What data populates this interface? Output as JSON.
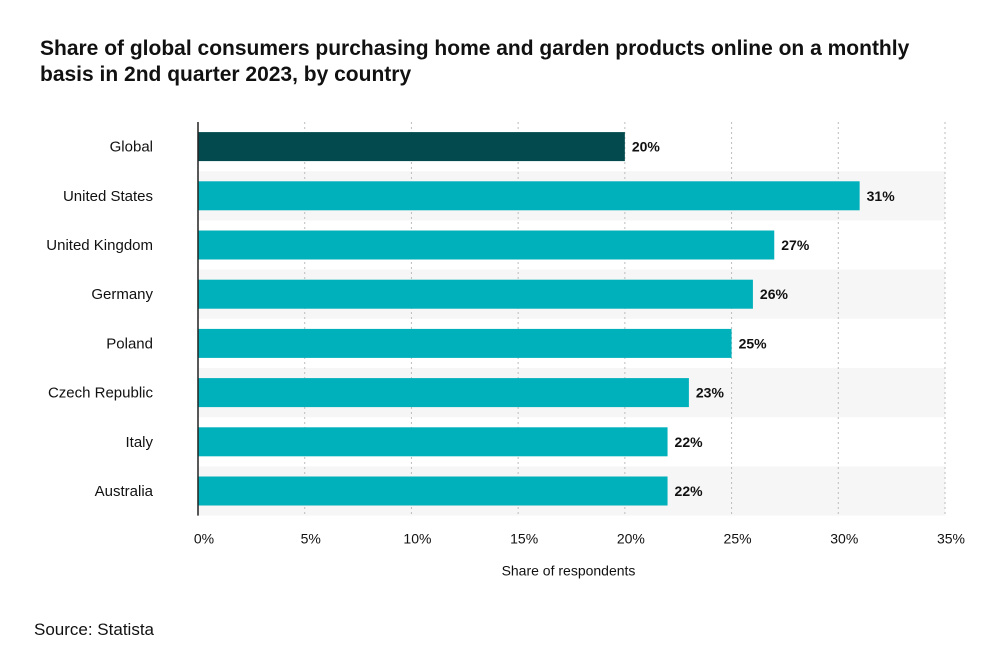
{
  "chart_data": {
    "type": "bar",
    "orientation": "horizontal",
    "title": "Share of global consumers purchasing home and garden products online on a monthly basis in 2nd quarter 2023, by country",
    "categories": [
      "Global",
      "United States",
      "United Kingdom",
      "Germany",
      "Poland",
      "Czech Republic",
      "Italy",
      "Australia"
    ],
    "values": [
      20,
      31,
      27,
      26,
      25,
      23,
      22,
      22
    ],
    "value_labels": [
      "20%",
      "31%",
      "27%",
      "26%",
      "25%",
      "23%",
      "22%",
      "22%"
    ],
    "highlight_index": 0,
    "xlabel": "Share of respondents",
    "ylabel": "",
    "xlim": [
      0,
      35
    ],
    "x_ticks": [
      0,
      5,
      10,
      15,
      20,
      25,
      30,
      35
    ],
    "x_tick_labels": [
      "0%",
      "5%",
      "10%",
      "15%",
      "20%",
      "25%",
      "30%",
      "35%"
    ],
    "grid": true,
    "colors": {
      "highlight": "#024a4d",
      "bar": "#00b0bb",
      "band": "#f6f6f6",
      "grid": "#bdbdbd",
      "axis": "#222222"
    }
  },
  "source": "Source: Statista"
}
